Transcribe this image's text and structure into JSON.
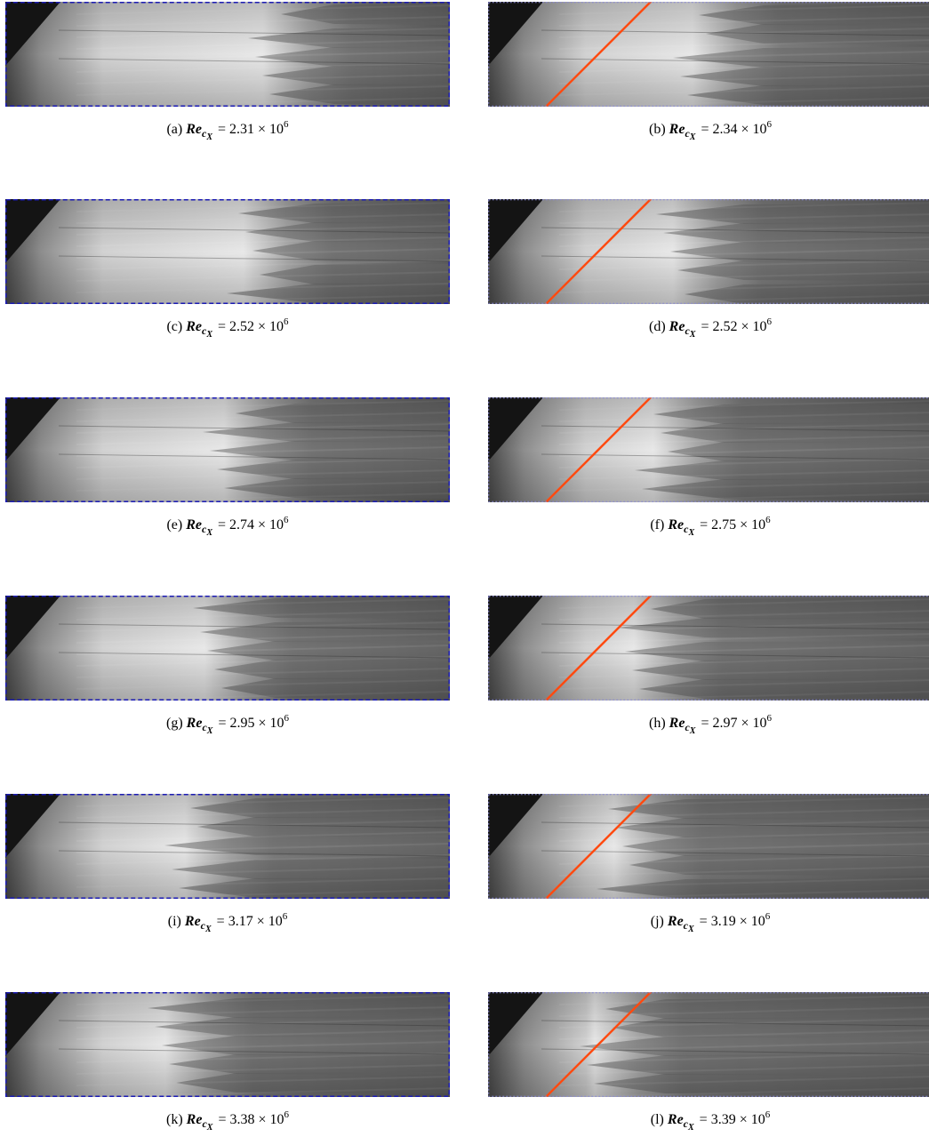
{
  "figure": {
    "panels": [
      {
        "label": "(a)",
        "value": "2.31",
        "variant": "left"
      },
      {
        "label": "(b)",
        "value": "2.34",
        "variant": "right"
      },
      {
        "label": "(c)",
        "value": "2.52",
        "variant": "left"
      },
      {
        "label": "(d)",
        "value": "2.52",
        "variant": "right"
      },
      {
        "label": "(e)",
        "value": "2.74",
        "variant": "left"
      },
      {
        "label": "(f)",
        "value": "2.75",
        "variant": "right"
      },
      {
        "label": "(g)",
        "value": "2.95",
        "variant": "left"
      },
      {
        "label": "(h)",
        "value": "2.97",
        "variant": "right"
      },
      {
        "label": "(i)",
        "value": "3.17",
        "variant": "left"
      },
      {
        "label": "(j)",
        "value": "3.19",
        "variant": "right"
      },
      {
        "label": "(k)",
        "value": "3.38",
        "variant": "left"
      },
      {
        "label": "(l)",
        "value": "3.39",
        "variant": "right"
      }
    ],
    "symbol": "Re",
    "subscript": "c",
    "sub_subscript": "X",
    "times": "× 10",
    "exponent": "6",
    "colors": {
      "left_frame": "#1b1bb5",
      "right_frame": "#8a8ad8",
      "reference_line": "#ff4a10",
      "dark_corner": "#141414"
    }
  }
}
